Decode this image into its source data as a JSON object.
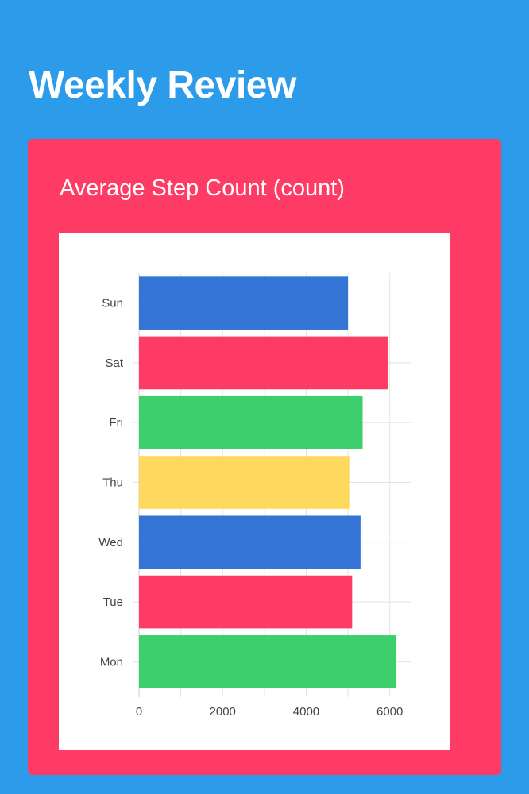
{
  "header": {
    "title": "Weekly Review"
  },
  "card": {
    "title": "Average Step Count (count)"
  },
  "chart_data": {
    "type": "bar",
    "orientation": "horizontal",
    "title": "Average Step Count (count)",
    "categories": [
      "Mon",
      "Tue",
      "Wed",
      "Thu",
      "Fri",
      "Sat",
      "Sun"
    ],
    "values": [
      6150,
      5100,
      5300,
      5050,
      5350,
      5950,
      5000
    ],
    "bar_colors": [
      "#3ccf6b",
      "#fd3b64",
      "#3474d4",
      "#ffd95e",
      "#3ccf6b",
      "#fd3b64",
      "#3474d4"
    ],
    "xlim": [
      0,
      6500
    ],
    "xticks": [
      0,
      2000,
      4000,
      6000
    ],
    "grid": true
  }
}
